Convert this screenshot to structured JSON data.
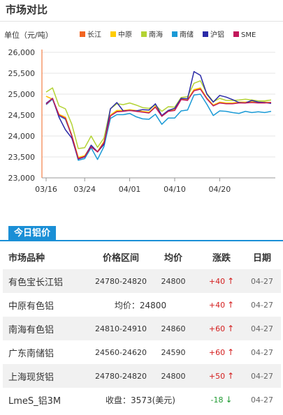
{
  "page_title": "市场对比",
  "chart_data": {
    "type": "line",
    "ylabel": "单位（元/吨）",
    "ylim": [
      23000,
      26000
    ],
    "yticks": [
      "23,000",
      "23,500",
      "24,000",
      "24,500",
      "25,000",
      "25,500",
      "26,000"
    ],
    "ytick_values": [
      23000,
      23500,
      24000,
      24500,
      25000,
      25500,
      26000
    ],
    "xtick_labels": [
      "03/16",
      "03/24",
      "04/01",
      "04/10",
      "04/20"
    ],
    "xtick_index": [
      0,
      6,
      13,
      20,
      27
    ],
    "grid": "horizontal",
    "legend_position": "top",
    "x": [
      "03/16",
      "03/17",
      "03/18",
      "03/19",
      "03/20",
      "03/21",
      "03/24",
      "03/25",
      "03/26",
      "03/27",
      "03/28",
      "03/29",
      "03/30",
      "04/01",
      "04/02",
      "04/03",
      "04/04",
      "04/05",
      "04/06",
      "04/07",
      "04/08",
      "04/09",
      "04/10",
      "04/11",
      "04/12",
      "04/13",
      "04/14",
      "04/17",
      "04/18",
      "04/19",
      "04/20",
      "04/21",
      "04/24",
      "04/25",
      "04/26",
      "04/27"
    ],
    "series": [
      {
        "name": "长江",
        "color": "#f26522",
        "values": [
          24950,
          24880,
          24500,
          24450,
          24000,
          23480,
          23520,
          23750,
          23620,
          23850,
          24480,
          24600,
          24600,
          24620,
          24600,
          24580,
          24560,
          24700,
          24480,
          24600,
          24620,
          24880,
          24860,
          25100,
          25140,
          24900,
          24730,
          24800,
          24780,
          24780,
          24800,
          24800,
          24810,
          24800,
          24800,
          24800
        ]
      },
      {
        "name": "中原",
        "color": "#ffcc00",
        "values": [
          24950,
          24880,
          24520,
          24450,
          24020,
          23490,
          23530,
          23760,
          23630,
          23870,
          24500,
          24610,
          24610,
          24630,
          24610,
          24590,
          24570,
          24710,
          24490,
          24610,
          24630,
          24890,
          24870,
          25110,
          25150,
          24910,
          24740,
          24810,
          24790,
          24790,
          24810,
          24810,
          24820,
          24810,
          24810,
          24800
        ]
      },
      {
        "name": "南海",
        "color": "#b3d334",
        "values": [
          25050,
          25150,
          24720,
          24650,
          24280,
          23700,
          23720,
          24000,
          23730,
          23950,
          24650,
          24770,
          24750,
          24790,
          24740,
          24680,
          24660,
          24740,
          24590,
          24700,
          24690,
          24920,
          24940,
          25260,
          25320,
          25020,
          24820,
          24900,
          24850,
          24850,
          24860,
          24880,
          24860,
          24840,
          24840,
          24860
        ]
      },
      {
        "name": "南储",
        "color": "#1a9ad6",
        "values": [
          24750,
          24880,
          24480,
          24400,
          24000,
          23420,
          23460,
          23720,
          23440,
          23750,
          24420,
          24510,
          24510,
          24540,
          24460,
          24410,
          24400,
          24520,
          24280,
          24430,
          24430,
          24600,
          24620,
          24980,
          25000,
          24760,
          24490,
          24600,
          24590,
          24560,
          24540,
          24590,
          24560,
          24580,
          24560,
          24590
        ]
      },
      {
        "name": "沪铝",
        "color": "#2b2ba8",
        "values": [
          24780,
          24900,
          24450,
          24150,
          23950,
          23450,
          23500,
          23780,
          23620,
          23800,
          24650,
          24800,
          24600,
          24610,
          24600,
          24630,
          24620,
          24770,
          24490,
          24610,
          24660,
          24900,
          24890,
          25540,
          25450,
          25000,
          24810,
          24970,
          24930,
          24870,
          24800,
          24790,
          24850,
          24810,
          24800,
          24780
        ]
      },
      {
        "name": "SME",
        "color": "#c2185b",
        "values": [
          24760,
          24900,
          24500,
          24420,
          24000,
          23460,
          23510,
          23740,
          23620,
          23840,
          24480,
          24580,
          24590,
          24610,
          24590,
          24570,
          24550,
          24690,
          24470,
          24590,
          24610,
          24870,
          24850,
          25080,
          25120,
          24890,
          24720,
          24790,
          24770,
          24770,
          24790,
          24790,
          24800,
          24790,
          24790,
          24800
        ]
      }
    ]
  },
  "tab": {
    "label": "今日铝价"
  },
  "table": {
    "headers": {
      "name": "市场品种",
      "range": "价格区间",
      "avg": "均价",
      "change": "涨跌",
      "date": "日期"
    },
    "rows": [
      {
        "name": "有色宝长江铝",
        "range": "24780-24820",
        "avg": "24800",
        "change": "+40",
        "dir": "up",
        "date": "04-27"
      },
      {
        "name": "中原有色铝",
        "merged": "均价：24800",
        "change": "+40",
        "dir": "up",
        "date": "04-27"
      },
      {
        "name": "南海有色铝",
        "range": "24810-24910",
        "avg": "24860",
        "change": "+60",
        "dir": "up",
        "date": "04-27"
      },
      {
        "name": "广东南储铝",
        "range": "24560-24620",
        "avg": "24590",
        "change": "+60",
        "dir": "up",
        "date": "04-27"
      },
      {
        "name": "上海现货铝",
        "range": "24780-24820",
        "avg": "24800",
        "change": "+50",
        "dir": "up",
        "date": "04-27"
      },
      {
        "name": "LmeS_铝3M",
        "merged": "收盘：3573(美元)",
        "change": "-18",
        "dir": "down",
        "date": "04-27"
      }
    ]
  }
}
